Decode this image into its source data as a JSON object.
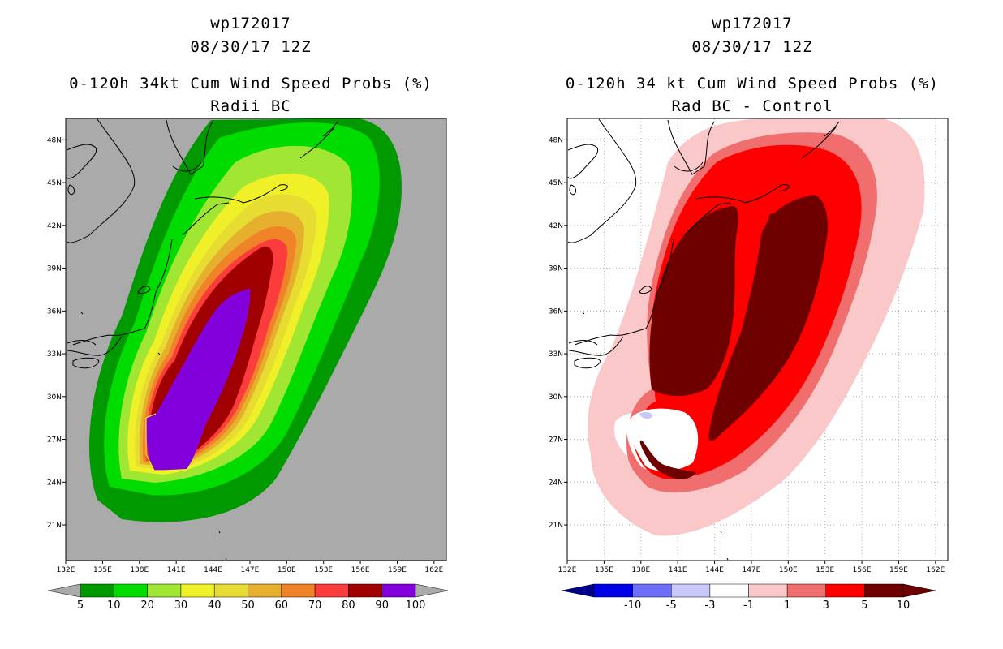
{
  "panels": [
    {
      "id": "left",
      "storm_id": "wp172017",
      "datetime": "08/30/17 12Z",
      "title": "0-120h 34kt Cum Wind Speed Probs (%)",
      "subtitle": "Radii BC",
      "lon_labels": [
        "132E",
        "135E",
        "138E",
        "141E",
        "144E",
        "147E",
        "150E",
        "153E",
        "156E",
        "159E",
        "162E"
      ],
      "lat_labels": [
        "48N",
        "45N",
        "42N",
        "39N",
        "36N",
        "33N",
        "30N",
        "27N",
        "24N",
        "21N"
      ],
      "colorbar_labels": [
        "5",
        "10",
        "20",
        "30",
        "40",
        "50",
        "60",
        "70",
        "80",
        "90",
        "100"
      ],
      "colorbar_colors": [
        "#009a00",
        "#00dc00",
        "#a0e632",
        "#f0f028",
        "#e6dc32",
        "#e6af2d",
        "#f08228",
        "#fa3c3c",
        "#a00000",
        "#8200dc"
      ],
      "background_color": "#aaaaaa"
    },
    {
      "id": "right",
      "storm_id": "wp172017",
      "datetime": "08/30/17 12Z",
      "title": "0-120h 34 kt Cum Wind Speed Probs (%)",
      "subtitle": "Rad BC - Control",
      "lon_labels": [
        "132E",
        "135E",
        "138E",
        "141E",
        "144E",
        "147E",
        "150E",
        "153E",
        "156E",
        "159E",
        "162E"
      ],
      "lat_labels": [
        "48N",
        "45N",
        "42N",
        "39N",
        "36N",
        "33N",
        "30N",
        "27N",
        "24N",
        "21N"
      ],
      "colorbar_labels": [
        "-10",
        "-5",
        "-3",
        "-1",
        "1",
        "3",
        "5",
        "10"
      ],
      "colorbar_colors": [
        "#0000e6",
        "#6e6efa",
        "#c8c8fa",
        "#ffffff",
        "#fac8c8",
        "#f06e6e",
        "#ff0000",
        "#6e0000"
      ],
      "colorbar_end_colors": [
        "#00008c",
        "#6e0000"
      ],
      "background_color": "#ffffff"
    }
  ],
  "map": {
    "lon_range": [
      132,
      163
    ],
    "lat_range": [
      18.5,
      49.5
    ],
    "lon_ticks": [
      132,
      135,
      138,
      141,
      144,
      147,
      150,
      153,
      156,
      159,
      162
    ],
    "lat_ticks": [
      48,
      45,
      42,
      39,
      36,
      33,
      30,
      27,
      24,
      21
    ]
  }
}
